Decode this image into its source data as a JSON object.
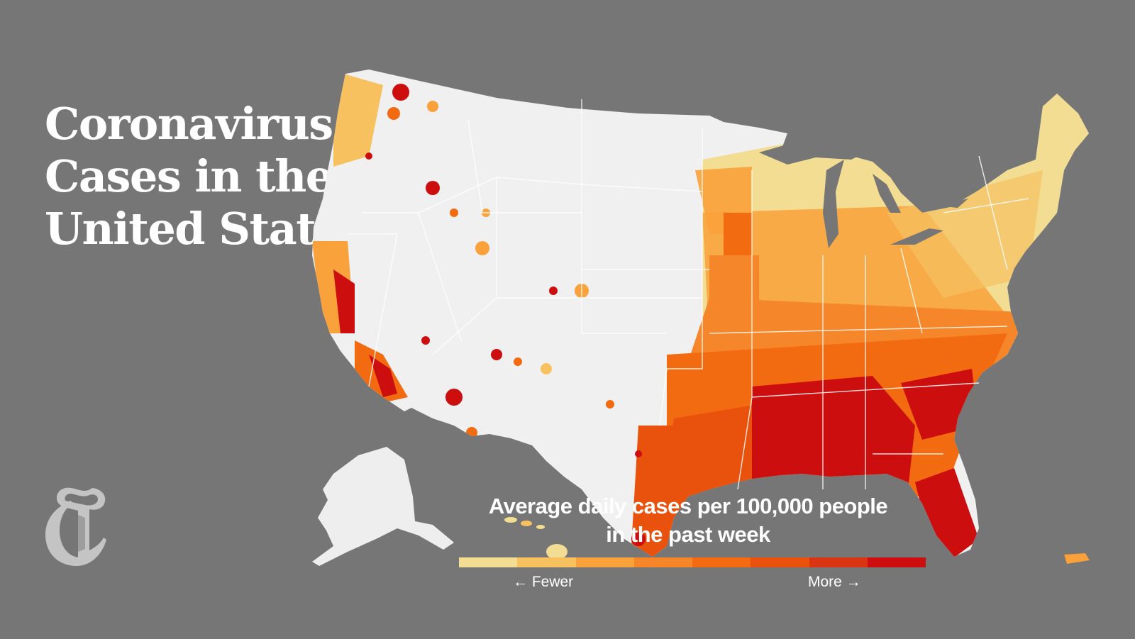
{
  "title_lines": [
    "Coronavirus",
    "Cases in the",
    "United States"
  ],
  "legend": {
    "title_lines": [
      "Average daily cases per 100,000 people",
      "in the past week"
    ],
    "fewer_label": "← Fewer",
    "more_label": "More →",
    "colors": [
      "#f2dd93",
      "#f7c160",
      "#f9a13a",
      "#f5862a",
      "#f26b11",
      "#e8520d",
      "#d93513",
      "#cc0e0e"
    ]
  },
  "map": {
    "land_color": "#f0f0f0",
    "border_color": "#ffffff",
    "logo_icon": "nyt-t-logo"
  }
}
